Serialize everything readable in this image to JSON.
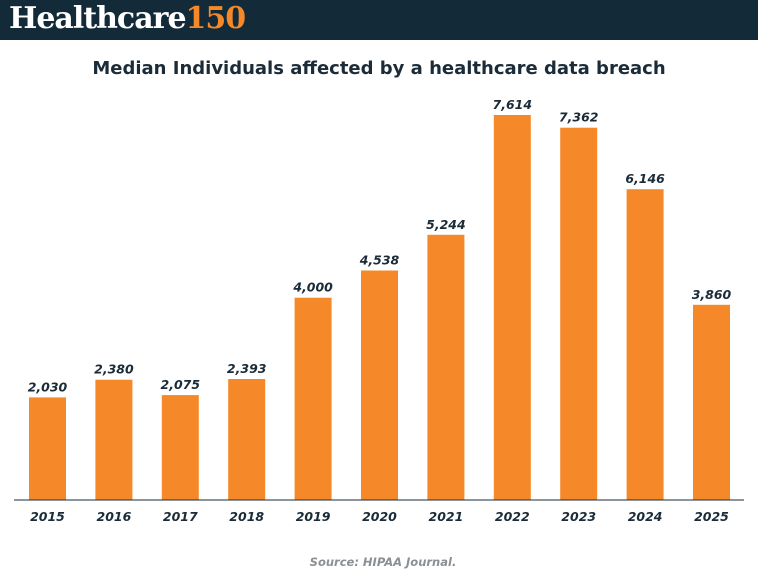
{
  "header": {
    "logo_word": "Healthcare",
    "logo_number": "150",
    "background_color": "#132a38",
    "accent_color": "#f5892a"
  },
  "chart_data": {
    "type": "bar",
    "title": "Median Individuals affected by a healthcare data breach",
    "xlabel": "",
    "ylabel": "",
    "categories": [
      "2015",
      "2016",
      "2017",
      "2018",
      "2019",
      "2020",
      "2021",
      "2022",
      "2023",
      "2024",
      "2025"
    ],
    "values": [
      2030,
      2380,
      2075,
      2393,
      4000,
      4538,
      5244,
      7614,
      7362,
      6146,
      3860
    ],
    "value_labels": [
      "2,030",
      "2,380",
      "2,075",
      "2,393",
      "4,000",
      "4,538",
      "5,244",
      "7,614",
      "7,362",
      "6,146",
      "3,860"
    ],
    "ylim": [
      0,
      7614
    ],
    "grid": false,
    "legend": "none",
    "bar_color": "#f5892a"
  },
  "footer": {
    "source": "Source: HIPAA Journal."
  }
}
